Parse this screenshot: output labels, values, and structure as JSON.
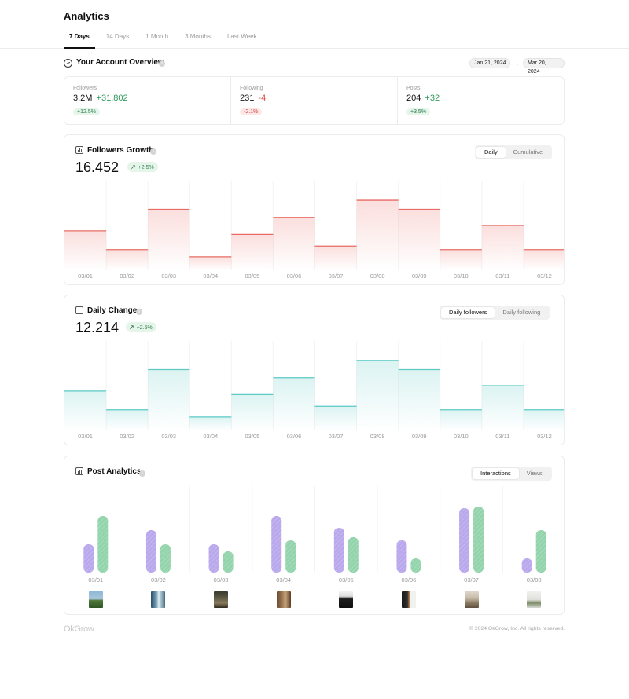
{
  "app": {
    "title": "Analytics"
  },
  "tabs": [
    {
      "label": "7 Days",
      "active": true
    },
    {
      "label": "14 Days",
      "active": false
    },
    {
      "label": "1 Month",
      "active": false
    },
    {
      "label": "3 Months",
      "active": false
    },
    {
      "label": "Last Week",
      "active": false
    }
  ],
  "overview": {
    "title": "Your Account Overview",
    "date_from": "Jan 21, 2024",
    "date_to": "Mar 20, 2024",
    "info_glyph": "i"
  },
  "stats": [
    {
      "label": "Followers",
      "value": "3.2M",
      "delta": "+31,802",
      "delta_type": "positive",
      "badge": "+12.5%"
    },
    {
      "label": "Following",
      "value": "231",
      "delta": "-4",
      "delta_type": "negative",
      "badge": "-2.1%"
    },
    {
      "label": "Posts",
      "value": "204",
      "delta": "+32",
      "delta_type": "positive",
      "badge": "+3.5%"
    }
  ],
  "followers_growth": {
    "title": "Followers Growth",
    "value": "16.452",
    "badge": "+2.5%",
    "toggle": [
      {
        "label": "Daily",
        "active": true
      },
      {
        "label": "Cumulative",
        "active": false
      }
    ],
    "color": "#e86b63"
  },
  "daily_change": {
    "title": "Daily Change",
    "value": "12.214",
    "badge": "+2.5%",
    "toggle": [
      {
        "label": "Daily followers",
        "active": true
      },
      {
        "label": "Daily following",
        "active": false
      }
    ],
    "color": "#5cc9c4"
  },
  "post_analytics": {
    "title": "Post Analytics",
    "toggle": [
      {
        "label": "Interactions",
        "active": true
      },
      {
        "label": "Views",
        "active": false
      }
    ],
    "colors": {
      "interactions": "#b9a8ec",
      "views": "#93d4ac"
    },
    "thumbnails": [
      "landscape-thumb",
      "waterfall-thumb",
      "forest-thumb",
      "doorway-thumb",
      "interior-dark-thumb",
      "window-thumb",
      "room-thumb",
      "plant-thumb"
    ]
  },
  "chart_data": [
    {
      "type": "bar",
      "title": "Followers Growth",
      "categories": [
        "03/01",
        "03/02",
        "03/03",
        "03/04",
        "03/05",
        "03/06",
        "03/07",
        "03/08",
        "03/09",
        "03/10",
        "03/11",
        "03/12"
      ],
      "values": [
        44,
        23,
        68,
        15,
        40,
        59,
        27,
        78,
        68,
        23,
        50,
        23
      ],
      "ylim": [
        0,
        100
      ],
      "grid": false
    },
    {
      "type": "bar",
      "title": "Daily Change",
      "categories": [
        "03/01",
        "03/02",
        "03/03",
        "03/04",
        "03/05",
        "03/06",
        "03/07",
        "03/08",
        "03/09",
        "03/10",
        "03/11",
        "03/12"
      ],
      "values": [
        44,
        23,
        68,
        15,
        40,
        59,
        27,
        78,
        68,
        23,
        50,
        23
      ],
      "ylim": [
        0,
        100
      ],
      "grid": false
    },
    {
      "type": "bar",
      "title": "Post Analytics",
      "categories": [
        "03/01",
        "03/02",
        "03/03",
        "03/04",
        "03/05",
        "03/06",
        "03/07",
        "03/08"
      ],
      "series": [
        {
          "values": [
            36,
            54,
            36,
            72,
            57,
            41,
            82,
            18
          ]
        },
        {
          "values": [
            72,
            36,
            27,
            41,
            45,
            18,
            84,
            54
          ]
        }
      ],
      "ylim": [
        0,
        100
      ],
      "grid": false
    }
  ],
  "footer": {
    "logo": "OkGrow",
    "copyright": "© 2024 OkGrow, Inc. All rights reserved."
  }
}
